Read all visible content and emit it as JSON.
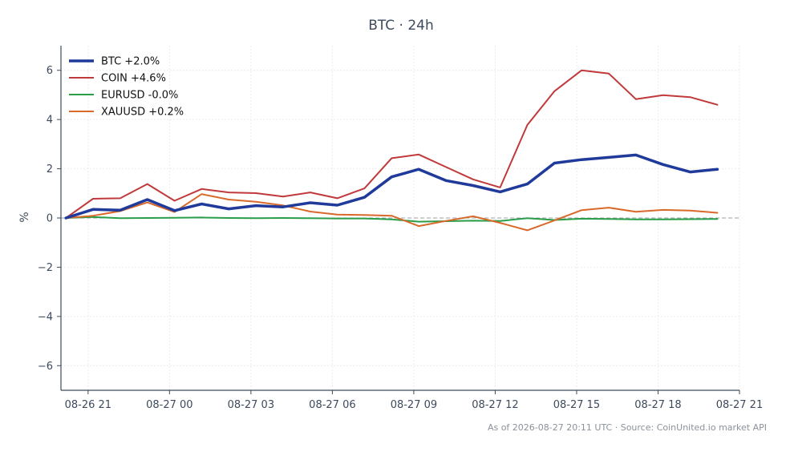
{
  "chart_data": {
    "type": "line",
    "title": "BTC · 24h",
    "ylabel": "%",
    "xlabel": "",
    "xlim": [
      "08-26 20:00",
      "08-27 21:00"
    ],
    "ylim": [
      -7,
      7
    ],
    "yticks": [
      -6,
      -4,
      -2,
      0,
      2,
      4,
      6
    ],
    "yticklabels": [
      "−6",
      "−4",
      "−2",
      "0",
      "2",
      "4",
      "6"
    ],
    "xticks": [
      "08-26 21:00",
      "08-27 00:00",
      "08-27 03:00",
      "08-27 06:00",
      "08-27 09:00",
      "08-27 12:00",
      "08-27 15:00",
      "08-27 18:00",
      "08-27 21:00"
    ],
    "xticklabels": [
      "08-26 21",
      "08-27 00",
      "08-27 03",
      "08-27 06",
      "08-27 09",
      "08-27 12",
      "08-27 15",
      "08-27 18",
      "08-27 21"
    ],
    "x": [
      "08-26 20:11",
      "08-26 21:11",
      "08-26 22:11",
      "08-26 23:11",
      "08-27 00:11",
      "08-27 01:11",
      "08-27 02:11",
      "08-27 03:11",
      "08-27 04:11",
      "08-27 05:11",
      "08-27 06:11",
      "08-27 07:11",
      "08-27 08:11",
      "08-27 09:11",
      "08-27 10:11",
      "08-27 11:11",
      "08-27 12:11",
      "08-27 13:11",
      "08-27 14:11",
      "08-27 15:11",
      "08-27 16:11",
      "08-27 17:11",
      "08-27 18:11",
      "08-27 19:11",
      "08-27 20:11"
    ],
    "grid": true,
    "legend": "top-left",
    "zero_line": true,
    "series": [
      {
        "name": "BTC +2.0%",
        "color": "#1f3a9a",
        "width": 3.5,
        "values": [
          0.0,
          0.35,
          0.32,
          0.75,
          0.3,
          0.57,
          0.37,
          0.5,
          0.45,
          0.62,
          0.52,
          0.84,
          1.67,
          1.98,
          1.52,
          1.32,
          1.06,
          1.38,
          2.23,
          2.37,
          2.46,
          2.56,
          2.17,
          1.87,
          1.98
        ]
      },
      {
        "name": "COIN +4.6%",
        "color": "#c0393b",
        "width": 2,
        "values": [
          0.0,
          0.78,
          0.8,
          1.38,
          0.7,
          1.18,
          1.04,
          1.01,
          0.87,
          1.04,
          0.8,
          1.2,
          2.43,
          2.58,
          2.07,
          1.57,
          1.24,
          3.78,
          5.15,
          6.0,
          5.87,
          4.83,
          4.99,
          4.91,
          4.6
        ]
      },
      {
        "name": "EURUSD -0.0%",
        "color": "#2a9d48",
        "width": 2,
        "values": [
          0.0,
          0.04,
          -0.01,
          0.0,
          0.01,
          0.02,
          0.0,
          -0.01,
          0.0,
          -0.01,
          -0.02,
          -0.02,
          -0.06,
          -0.15,
          -0.13,
          -0.11,
          -0.12,
          -0.01,
          -0.08,
          -0.03,
          -0.04,
          -0.06,
          -0.06,
          -0.05,
          -0.04
        ]
      },
      {
        "name": "XAUUSD +0.2%",
        "color": "#d9692a",
        "width": 2,
        "values": [
          0.0,
          0.09,
          0.28,
          0.63,
          0.24,
          0.97,
          0.75,
          0.66,
          0.51,
          0.26,
          0.14,
          0.12,
          0.09,
          -0.33,
          -0.12,
          0.07,
          -0.2,
          -0.5,
          -0.1,
          0.32,
          0.42,
          0.25,
          0.33,
          0.3,
          0.21
        ]
      }
    ],
    "annotation": "As of 2026-08-27 20:11 UTC · Source: CoinUnited.io market API"
  }
}
